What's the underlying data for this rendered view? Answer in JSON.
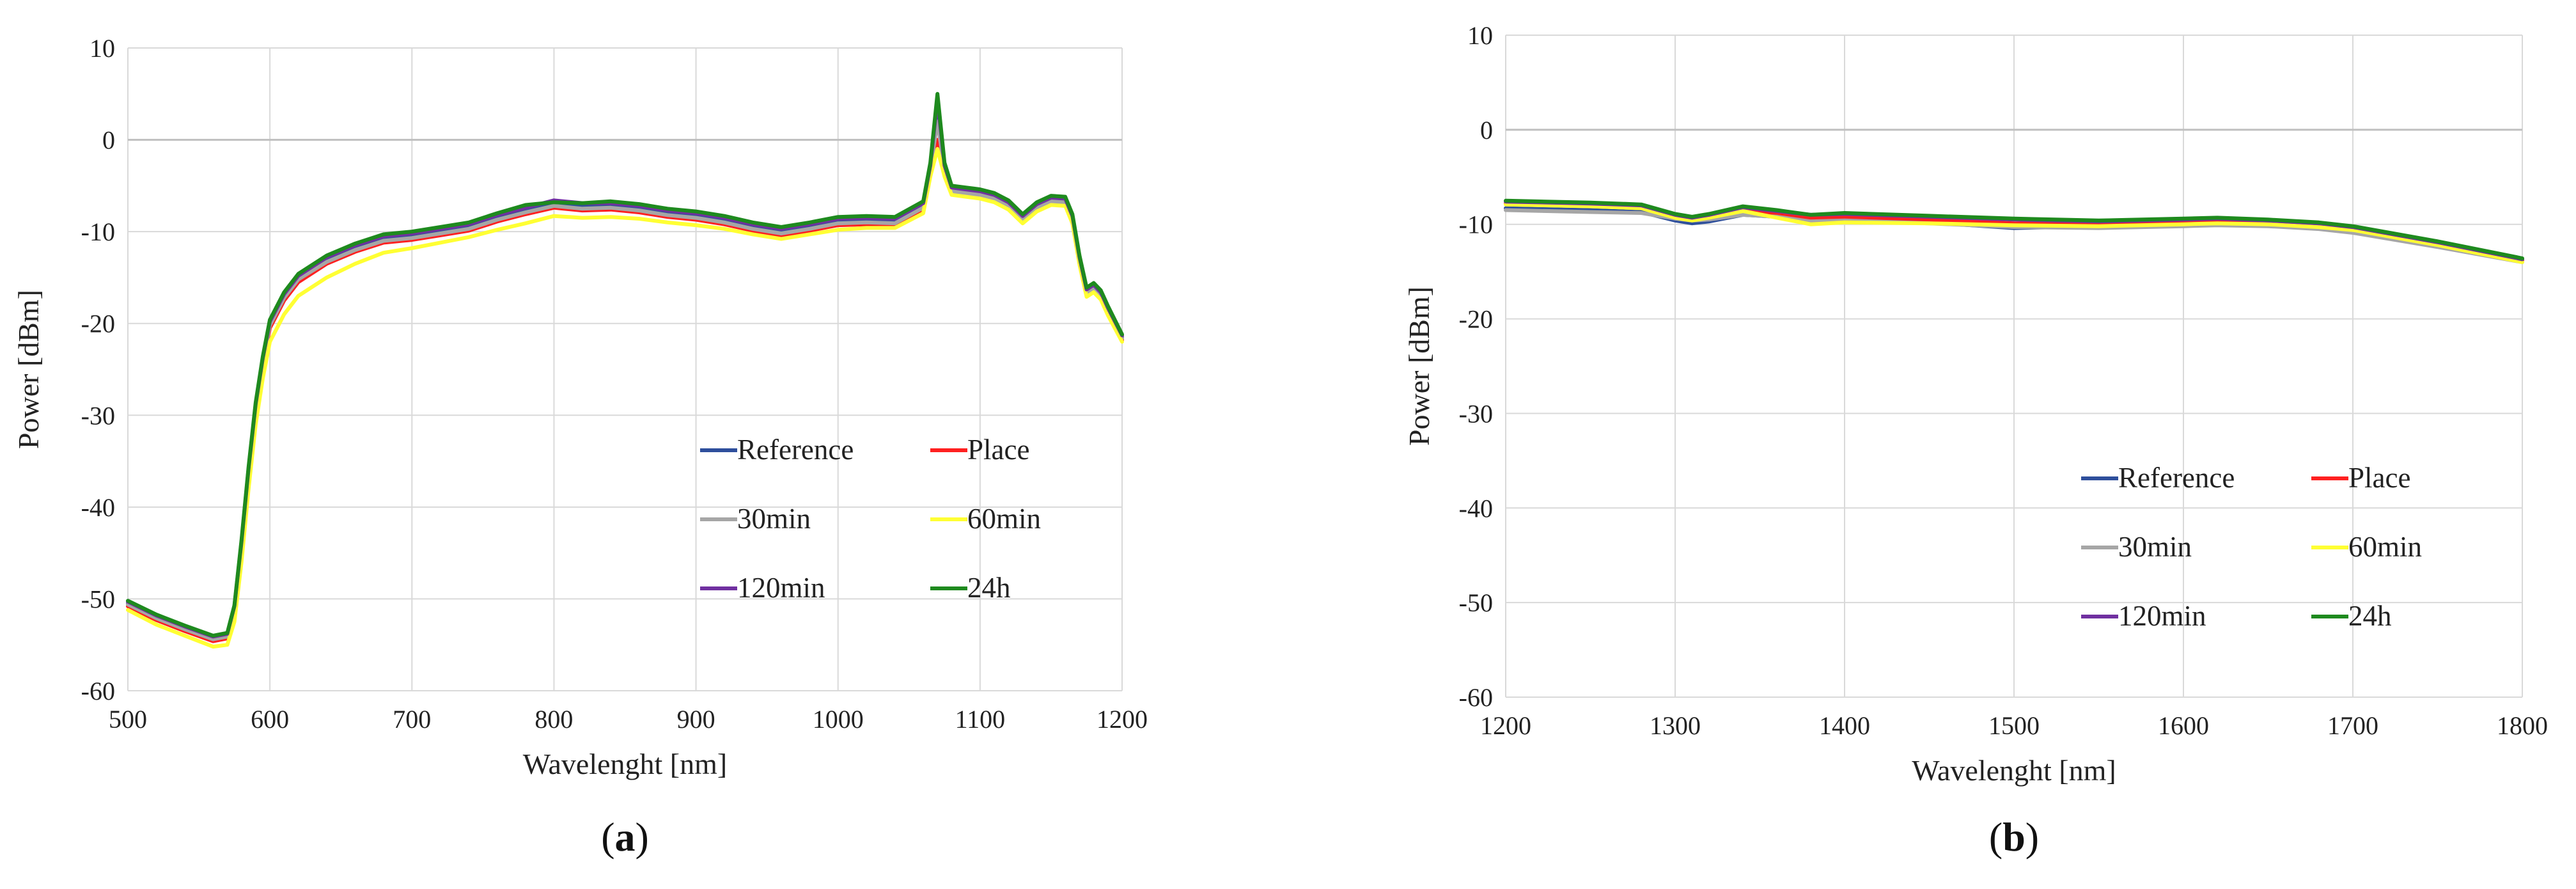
{
  "chart_data": [
    {
      "type": "line",
      "panel": "a",
      "caption_open": "(",
      "caption_letter": "a",
      "caption_close": ")",
      "xlabel": "Wavelenght [nm]",
      "ylabel": "Power [dBm]",
      "xlim": [
        500,
        1200
      ],
      "ylim": [
        -60,
        10
      ],
      "xticks": [
        500,
        600,
        700,
        800,
        900,
        1000,
        1100,
        1200
      ],
      "yticks": [
        10,
        0,
        -10,
        -20,
        -30,
        -40,
        -50,
        -60
      ],
      "grid": true,
      "legend_position": "bottom-right",
      "series": [
        {
          "name": "Reference",
          "color": "#2e4f9c",
          "x": [
            500,
            520,
            540,
            560,
            570,
            575,
            580,
            585,
            590,
            595,
            600,
            610,
            620,
            640,
            660,
            680,
            700,
            720,
            740,
            760,
            780,
            800,
            820,
            840,
            860,
            880,
            900,
            920,
            940,
            960,
            980,
            1000,
            1020,
            1040,
            1060,
            1065,
            1070,
            1075,
            1080,
            1090,
            1100,
            1110,
            1120,
            1130,
            1140,
            1150,
            1160,
            1165,
            1170,
            1175,
            1180,
            1185,
            1190,
            1200
          ],
          "y": [
            -50.5,
            -52,
            -53.2,
            -54.3,
            -54,
            -51,
            -44,
            -36,
            -29,
            -24,
            -20,
            -17,
            -15,
            -13,
            -11.8,
            -10.8,
            -10.5,
            -10,
            -9.5,
            -8.5,
            -7.7,
            -7,
            -7.3,
            -7.2,
            -7.5,
            -8,
            -8.3,
            -8.8,
            -9.5,
            -10,
            -9.5,
            -8.9,
            -8.8,
            -8.9,
            -7.2,
            -3,
            3.5,
            -3,
            -5.4,
            -5.6,
            -5.8,
            -6.2,
            -7,
            -8.5,
            -7.2,
            -6.5,
            -6.6,
            -8.5,
            -13,
            -16.5,
            -16,
            -16.8,
            -18.5,
            -21.5
          ]
        },
        {
          "name": "Place",
          "color": "#ff2020",
          "x": [
            500,
            520,
            540,
            560,
            570,
            575,
            580,
            585,
            590,
            595,
            600,
            610,
            620,
            640,
            660,
            680,
            700,
            720,
            740,
            760,
            780,
            800,
            820,
            840,
            860,
            880,
            900,
            920,
            940,
            960,
            980,
            1000,
            1020,
            1040,
            1060,
            1065,
            1070,
            1075,
            1080,
            1090,
            1100,
            1110,
            1120,
            1130,
            1140,
            1150,
            1160,
            1165,
            1170,
            1175,
            1180,
            1185,
            1190,
            1200
          ],
          "y": [
            -50.8,
            -52.3,
            -53.5,
            -54.6,
            -54.3,
            -51.3,
            -44.5,
            -36.5,
            -29.5,
            -24.5,
            -20.5,
            -17.5,
            -15.5,
            -13.5,
            -12.2,
            -11.2,
            -10.9,
            -10.4,
            -9.9,
            -8.9,
            -8.1,
            -7.4,
            -7.7,
            -7.6,
            -7.9,
            -8.4,
            -8.7,
            -9.2,
            -9.9,
            -10.4,
            -9.9,
            -9.3,
            -9.2,
            -9.3,
            -7.6,
            -3.4,
            0,
            -3.4,
            -5.8,
            -6,
            -6.2,
            -6.6,
            -7.4,
            -8.9,
            -7.6,
            -6.9,
            -7,
            -8.9,
            -13.4,
            -16.9,
            -16.4,
            -17.2,
            -18.9,
            -21.8
          ]
        },
        {
          "name": "30min",
          "color": "#a6a6a6",
          "x": [
            500,
            520,
            540,
            560,
            570,
            575,
            580,
            585,
            590,
            595,
            600,
            610,
            620,
            640,
            660,
            680,
            700,
            720,
            740,
            760,
            780,
            800,
            820,
            840,
            860,
            880,
            900,
            920,
            940,
            960,
            980,
            1000,
            1020,
            1040,
            1060,
            1065,
            1070,
            1075,
            1080,
            1090,
            1100,
            1110,
            1120,
            1130,
            1140,
            1150,
            1160,
            1165,
            1170,
            1175,
            1180,
            1185,
            1190,
            1200
          ],
          "y": [
            -50.6,
            -52.1,
            -53.3,
            -54.4,
            -54.1,
            -51.1,
            -44.2,
            -36.2,
            -29.2,
            -24.2,
            -20.2,
            -17.2,
            -15.2,
            -13.3,
            -12,
            -11,
            -10.7,
            -10.2,
            -9.7,
            -8.7,
            -7.9,
            -7.2,
            -7.5,
            -7.4,
            -7.7,
            -8.2,
            -8.5,
            -9,
            -9.7,
            -10.2,
            -9.7,
            -9.1,
            -9,
            -9.1,
            -7.4,
            -3.2,
            2,
            -3.2,
            -5.6,
            -5.8,
            -6,
            -6.4,
            -7.2,
            -8.7,
            -7.4,
            -6.7,
            -6.8,
            -8.7,
            -13.2,
            -16.7,
            -16.2,
            -17,
            -18.7,
            -21.6
          ]
        },
        {
          "name": "60min",
          "color": "#ffff33",
          "x": [
            500,
            520,
            540,
            560,
            570,
            575,
            580,
            585,
            590,
            595,
            600,
            610,
            620,
            640,
            660,
            680,
            700,
            720,
            740,
            760,
            780,
            800,
            820,
            840,
            860,
            880,
            900,
            920,
            940,
            960,
            980,
            1000,
            1020,
            1040,
            1060,
            1065,
            1070,
            1075,
            1080,
            1090,
            1100,
            1110,
            1120,
            1130,
            1140,
            1150,
            1160,
            1165,
            1170,
            1175,
            1180,
            1185,
            1190,
            1200
          ],
          "y": [
            -51.2,
            -52.8,
            -54,
            -55.2,
            -55,
            -52.5,
            -46,
            -38,
            -31,
            -26,
            -22,
            -19,
            -17,
            -15,
            -13.5,
            -12.3,
            -11.8,
            -11.2,
            -10.6,
            -9.8,
            -9.1,
            -8.3,
            -8.5,
            -8.4,
            -8.6,
            -9,
            -9.3,
            -9.7,
            -10.3,
            -10.8,
            -10.3,
            -9.8,
            -9.6,
            -9.6,
            -8,
            -4,
            -1,
            -4,
            -6,
            -6.2,
            -6.4,
            -6.8,
            -7.6,
            -9.1,
            -7.8,
            -7.1,
            -7.2,
            -9.1,
            -13.6,
            -17.1,
            -16.6,
            -17.4,
            -19.1,
            -22
          ]
        },
        {
          "name": "120min",
          "color": "#7030a0",
          "x": [
            500,
            520,
            540,
            560,
            570,
            575,
            580,
            585,
            590,
            595,
            600,
            610,
            620,
            640,
            660,
            680,
            700,
            720,
            740,
            760,
            780,
            800,
            820,
            840,
            860,
            880,
            900,
            920,
            940,
            960,
            980,
            1000,
            1020,
            1040,
            1060,
            1065,
            1070,
            1075,
            1080,
            1090,
            1100,
            1110,
            1120,
            1130,
            1140,
            1150,
            1160,
            1165,
            1170,
            1175,
            1180,
            1185,
            1190,
            1200
          ],
          "y": [
            -50.3,
            -51.8,
            -53,
            -54.1,
            -53.8,
            -50.8,
            -43.8,
            -35.8,
            -28.8,
            -23.8,
            -19.8,
            -16.8,
            -14.8,
            -12.8,
            -11.5,
            -10.5,
            -10.2,
            -9.7,
            -9.2,
            -8.2,
            -7.4,
            -6.6,
            -6.9,
            -6.9,
            -7.2,
            -7.7,
            -8,
            -8.5,
            -9.2,
            -9.7,
            -9.2,
            -8.6,
            -8.5,
            -8.6,
            -6.9,
            -2.8,
            4.5,
            -2.8,
            -5.2,
            -5.4,
            -5.6,
            -6,
            -6.8,
            -8.3,
            -7,
            -6.3,
            -6.4,
            -8.3,
            -12.8,
            -16.3,
            -15.8,
            -16.6,
            -18.3,
            -21.3
          ]
        },
        {
          "name": "24h",
          "color": "#1e8a1e",
          "x": [
            500,
            520,
            540,
            560,
            570,
            575,
            580,
            585,
            590,
            595,
            600,
            610,
            620,
            640,
            660,
            680,
            700,
            720,
            740,
            760,
            780,
            800,
            820,
            840,
            860,
            880,
            900,
            920,
            940,
            960,
            980,
            1000,
            1020,
            1040,
            1060,
            1065,
            1070,
            1075,
            1080,
            1090,
            1100,
            1110,
            1120,
            1130,
            1140,
            1150,
            1160,
            1165,
            1170,
            1175,
            1180,
            1185,
            1190,
            1200
          ],
          "y": [
            -50.2,
            -51.7,
            -52.9,
            -54,
            -53.7,
            -50.7,
            -43.6,
            -35.6,
            -28.6,
            -23.6,
            -19.6,
            -16.6,
            -14.6,
            -12.6,
            -11.3,
            -10.3,
            -10,
            -9.5,
            -9,
            -8,
            -7.1,
            -6.8,
            -6.9,
            -6.7,
            -7,
            -7.5,
            -7.8,
            -8.3,
            -9,
            -9.5,
            -9,
            -8.4,
            -8.3,
            -8.4,
            -6.7,
            -2.5,
            5,
            -2.5,
            -5,
            -5.2,
            -5.4,
            -5.8,
            -6.6,
            -8.1,
            -6.8,
            -6.1,
            -6.2,
            -8.1,
            -12.6,
            -16.1,
            -15.6,
            -16.4,
            -18.1,
            -21.2
          ]
        }
      ]
    },
    {
      "type": "line",
      "panel": "b",
      "caption_open": "(",
      "caption_letter": "b",
      "caption_close": ")",
      "xlabel": "Wavelenght [nm]",
      "ylabel": "Power [dBm]",
      "xlim": [
        1200,
        1800
      ],
      "ylim": [
        -60,
        10
      ],
      "xticks": [
        1200,
        1300,
        1400,
        1500,
        1600,
        1700,
        1800
      ],
      "yticks": [
        10,
        0,
        -10,
        -20,
        -30,
        -40,
        -50,
        -60
      ],
      "grid": true,
      "legend_position": "bottom-center",
      "series": [
        {
          "name": "Reference",
          "color": "#2e4f9c",
          "x": [
            1200,
            1250,
            1280,
            1300,
            1310,
            1320,
            1340,
            1360,
            1380,
            1400,
            1450,
            1500,
            1550,
            1600,
            1620,
            1650,
            1680,
            1700,
            1750,
            1800
          ],
          "y": [
            -8.3,
            -8.5,
            -8.7,
            -9.6,
            -9.9,
            -9.7,
            -9,
            -9.2,
            -9.6,
            -9.5,
            -9.8,
            -10.4,
            -10.2,
            -9.6,
            -9.5,
            -9.6,
            -9.9,
            -10.5,
            -12,
            -13.8
          ]
        },
        {
          "name": "Place",
          "color": "#ff2020",
          "x": [
            1200,
            1250,
            1280,
            1300,
            1310,
            1320,
            1340,
            1360,
            1380,
            1400,
            1450,
            1500,
            1550,
            1600,
            1620,
            1650,
            1680,
            1700,
            1750,
            1800
          ],
          "y": [
            -7.8,
            -8,
            -8.2,
            -9.2,
            -9.5,
            -9.2,
            -8.5,
            -8.9,
            -9.3,
            -9.2,
            -9.5,
            -9.9,
            -10,
            -9.7,
            -9.6,
            -9.7,
            -10,
            -10.4,
            -12,
            -13.8
          ]
        },
        {
          "name": "30min",
          "color": "#a6a6a6",
          "x": [
            1200,
            1250,
            1280,
            1300,
            1310,
            1320,
            1340,
            1360,
            1380,
            1400,
            1450,
            1500,
            1550,
            1600,
            1620,
            1650,
            1680,
            1700,
            1750,
            1800
          ],
          "y": [
            -8.5,
            -8.7,
            -8.8,
            -9.4,
            -9.6,
            -9.5,
            -9,
            -9.2,
            -9.7,
            -9.6,
            -9.9,
            -10.3,
            -10.4,
            -10.2,
            -10.1,
            -10.2,
            -10.5,
            -10.9,
            -12.4,
            -14
          ]
        },
        {
          "name": "60min",
          "color": "#ffff33",
          "x": [
            1200,
            1250,
            1280,
            1300,
            1310,
            1320,
            1340,
            1360,
            1380,
            1400,
            1450,
            1500,
            1550,
            1600,
            1620,
            1650,
            1680,
            1700,
            1750,
            1800
          ],
          "y": [
            -7.9,
            -8.1,
            -8.3,
            -9.3,
            -9.6,
            -9.3,
            -8.6,
            -9.3,
            -10,
            -9.8,
            -9.9,
            -10.1,
            -10.2,
            -10,
            -9.9,
            -10,
            -10.3,
            -10.6,
            -12.2,
            -14
          ]
        },
        {
          "name": "120min",
          "color": "#7030a0",
          "x": [
            1200,
            1250,
            1280,
            1300,
            1310,
            1320,
            1340,
            1360,
            1380,
            1400,
            1450,
            1500,
            1550,
            1600,
            1620,
            1650,
            1680,
            1700,
            1750,
            1800
          ],
          "y": [
            -7.6,
            -7.8,
            -8,
            -9,
            -9.3,
            -9,
            -8.2,
            -8.6,
            -9,
            -8.9,
            -9.2,
            -9.5,
            -9.7,
            -9.5,
            -9.4,
            -9.6,
            -9.9,
            -10.3,
            -11.9,
            -13.7
          ]
        },
        {
          "name": "24h",
          "color": "#1e8a1e",
          "x": [
            1200,
            1250,
            1280,
            1300,
            1310,
            1320,
            1340,
            1360,
            1380,
            1400,
            1450,
            1500,
            1550,
            1600,
            1620,
            1650,
            1680,
            1700,
            1750,
            1800
          ],
          "y": [
            -7.5,
            -7.7,
            -7.9,
            -8.9,
            -9.2,
            -8.9,
            -8.1,
            -8.5,
            -9,
            -8.8,
            -9.1,
            -9.4,
            -9.6,
            -9.4,
            -9.3,
            -9.5,
            -9.8,
            -10.2,
            -11.8,
            -13.6
          ]
        }
      ]
    }
  ]
}
